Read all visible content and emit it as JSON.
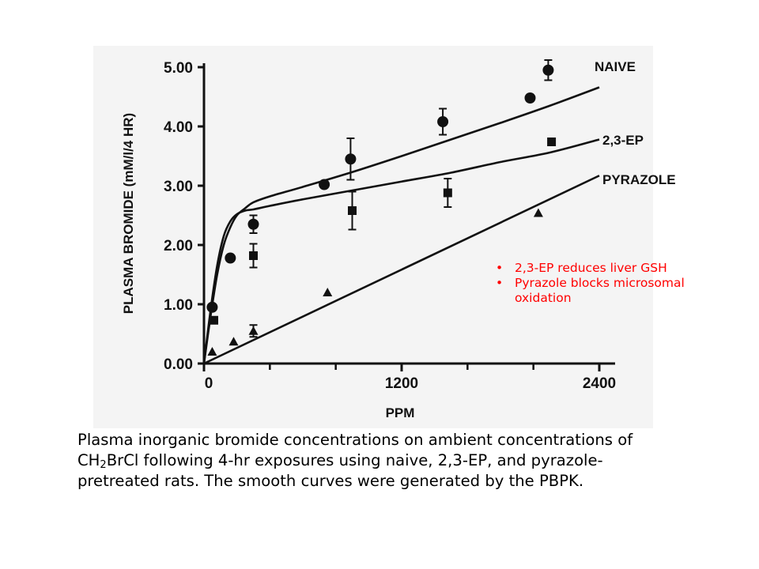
{
  "chart_data": {
    "type": "scatter",
    "title": "",
    "xlabel": "PPM",
    "ylabel": "PLASMA BROMIDE (mM/l/4 HR)",
    "xlim": [
      0,
      2400
    ],
    "ylim": [
      0,
      5.0
    ],
    "x_tick_labels": [
      "0",
      "1200",
      "2400"
    ],
    "x_ticks": [
      0,
      1200,
      2400
    ],
    "x_minor_ticks": [
      400,
      800,
      1600,
      2000
    ],
    "y_tick_labels": [
      "0.00",
      "1.00",
      "2.00",
      "3.00",
      "4.00",
      "5.00"
    ],
    "y_ticks": [
      0,
      1,
      2,
      3,
      4,
      5
    ],
    "series": [
      {
        "name": "NAIVE",
        "marker": "circle",
        "points": [
          {
            "x": 50,
            "y": 0.95
          },
          {
            "x": 160,
            "y": 1.78
          },
          {
            "x": 300,
            "y": 2.35,
            "err": 0.15
          },
          {
            "x": 730,
            "y": 3.02
          },
          {
            "x": 890,
            "y": 3.45,
            "err": 0.35
          },
          {
            "x": 1450,
            "y": 4.08,
            "err": 0.22
          },
          {
            "x": 1980,
            "y": 4.48
          },
          {
            "x": 2090,
            "y": 4.95,
            "err": 0.17
          }
        ],
        "curve": [
          [
            0,
            0
          ],
          [
            40,
            0.8
          ],
          [
            80,
            1.5
          ],
          [
            120,
            2.0
          ],
          [
            160,
            2.3
          ],
          [
            200,
            2.5
          ],
          [
            250,
            2.62
          ],
          [
            300,
            2.72
          ],
          [
            400,
            2.82
          ],
          [
            600,
            2.98
          ],
          [
            900,
            3.23
          ],
          [
            1200,
            3.5
          ],
          [
            1500,
            3.78
          ],
          [
            1800,
            4.06
          ],
          [
            2100,
            4.35
          ],
          [
            2400,
            4.66
          ]
        ]
      },
      {
        "name": "2,3-EP",
        "marker": "square",
        "points": [
          {
            "x": 60,
            "y": 0.73
          },
          {
            "x": 300,
            "y": 1.82,
            "err": 0.2
          },
          {
            "x": 900,
            "y": 2.58,
            "err": 0.32
          },
          {
            "x": 1480,
            "y": 2.88,
            "err": 0.24
          },
          {
            "x": 2110,
            "y": 3.74
          }
        ],
        "curve": [
          [
            0,
            0
          ],
          [
            40,
            0.9
          ],
          [
            80,
            1.65
          ],
          [
            120,
            2.15
          ],
          [
            160,
            2.4
          ],
          [
            200,
            2.52
          ],
          [
            250,
            2.58
          ],
          [
            300,
            2.6
          ],
          [
            400,
            2.66
          ],
          [
            600,
            2.77
          ],
          [
            900,
            2.92
          ],
          [
            1200,
            3.07
          ],
          [
            1500,
            3.22
          ],
          [
            1800,
            3.4
          ],
          [
            2100,
            3.56
          ],
          [
            2400,
            3.78
          ]
        ]
      },
      {
        "name": "PYRAZOLE",
        "marker": "triangle",
        "points": [
          {
            "x": 50,
            "y": 0.2
          },
          {
            "x": 180,
            "y": 0.37
          },
          {
            "x": 300,
            "y": 0.55,
            "err": 0.1
          },
          {
            "x": 750,
            "y": 1.2
          },
          {
            "x": 2030,
            "y": 2.54
          }
        ],
        "curve": [
          [
            0,
            0
          ],
          [
            2400,
            3.17
          ]
        ]
      }
    ]
  },
  "notes": [
    "2,3-EP reduces liver GSH",
    "Pyrazole blocks microsomal oxidation"
  ],
  "caption": {
    "line1": "Plasma inorganic bromide concentrations on ambient concentrations of",
    "line2_prefix": "CH",
    "line2_sub": "2",
    "line2_rest": "BrCl following 4-hr exposures using naive, 2,3-EP, and pyrazole-",
    "line3": "pretreated rats.  The smooth curves were generated by the PBPK."
  },
  "colors": {
    "ink": "#111111",
    "notes": "#ff0000",
    "panel": "#f4f4f4"
  }
}
